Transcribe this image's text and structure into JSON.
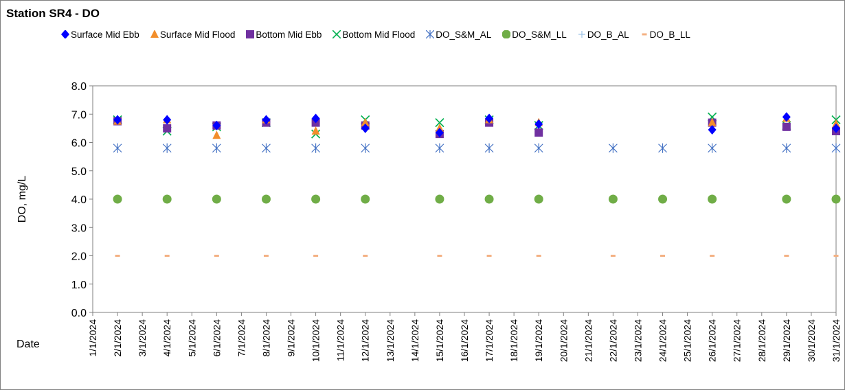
{
  "chart_data": {
    "type": "scatter",
    "title": "Station SR4 - DO",
    "xlabel": "Date",
    "ylabel": "DO, mg/L",
    "ylim": [
      0,
      8
    ],
    "yticks": [
      "0.0",
      "1.0",
      "2.0",
      "3.0",
      "4.0",
      "5.0",
      "6.0",
      "7.0",
      "8.0"
    ],
    "x_ticks": [
      "1/1/2024",
      "2/1/2024",
      "3/1/2024",
      "4/1/2024",
      "5/1/2024",
      "6/1/2024",
      "7/1/2024",
      "8/1/2024",
      "9/1/2024",
      "10/1/2024",
      "11/1/2024",
      "12/1/2024",
      "13/1/2024",
      "14/1/2024",
      "15/1/2024",
      "16/1/2024",
      "17/1/2024",
      "18/1/2024",
      "19/1/2024",
      "20/1/2024",
      "21/1/2024",
      "22/1/2024",
      "23/1/2024",
      "24/1/2024",
      "25/1/2024",
      "26/1/2024",
      "27/1/2024",
      "28/1/2024",
      "29/1/2024",
      "30/1/2024",
      "31/1/2024"
    ],
    "grid": false,
    "legend_position": "top",
    "series": [
      {
        "name": "Surface Mid Ebb",
        "marker": "diamond",
        "color": "#0000ff",
        "x": [
          "2/1/2024",
          "4/1/2024",
          "6/1/2024",
          "8/1/2024",
          "10/1/2024",
          "12/1/2024",
          "15/1/2024",
          "17/1/2024",
          "19/1/2024",
          "26/1/2024",
          "29/1/2024",
          "31/1/2024"
        ],
        "values": [
          6.8,
          6.8,
          6.6,
          6.8,
          6.85,
          6.5,
          6.35,
          6.85,
          6.65,
          6.45,
          6.9,
          6.5
        ]
      },
      {
        "name": "Surface Mid Flood",
        "marker": "triangle",
        "color": "#f28e2b",
        "x": [
          "2/1/2024",
          "4/1/2024",
          "6/1/2024",
          "8/1/2024",
          "10/1/2024",
          "12/1/2024",
          "15/1/2024",
          "17/1/2024",
          "19/1/2024",
          "26/1/2024",
          "29/1/2024",
          "31/1/2024"
        ],
        "values": [
          6.75,
          6.8,
          6.25,
          6.8,
          6.4,
          6.7,
          6.5,
          6.8,
          6.7,
          6.7,
          6.85,
          6.65
        ]
      },
      {
        "name": "Bottom Mid Ebb",
        "marker": "square",
        "color": "#7030a0",
        "x": [
          "2/1/2024",
          "4/1/2024",
          "6/1/2024",
          "8/1/2024",
          "10/1/2024",
          "12/1/2024",
          "15/1/2024",
          "17/1/2024",
          "19/1/2024",
          "26/1/2024",
          "29/1/2024",
          "31/1/2024"
        ],
        "values": [
          6.75,
          6.5,
          6.6,
          6.7,
          6.7,
          6.6,
          6.3,
          6.7,
          6.35,
          6.7,
          6.55,
          6.4
        ]
      },
      {
        "name": "Bottom Mid Flood",
        "marker": "x",
        "color": "#00b050",
        "x": [
          "2/1/2024",
          "4/1/2024",
          "6/1/2024",
          "8/1/2024",
          "10/1/2024",
          "12/1/2024",
          "15/1/2024",
          "17/1/2024",
          "19/1/2024",
          "26/1/2024",
          "29/1/2024",
          "31/1/2024"
        ],
        "values": [
          6.8,
          6.4,
          6.55,
          6.7,
          6.3,
          6.8,
          6.7,
          6.8,
          6.6,
          6.9,
          6.6,
          6.8
        ]
      },
      {
        "name": "DO_S&M_AL",
        "marker": "star",
        "color": "#4472c4",
        "x": [
          "2/1/2024",
          "4/1/2024",
          "6/1/2024",
          "8/1/2024",
          "10/1/2024",
          "12/1/2024",
          "15/1/2024",
          "17/1/2024",
          "19/1/2024",
          "22/1/2024",
          "24/1/2024",
          "26/1/2024",
          "29/1/2024",
          "31/1/2024"
        ],
        "values": [
          5.8,
          5.8,
          5.8,
          5.8,
          5.8,
          5.8,
          5.8,
          5.8,
          5.8,
          5.8,
          5.8,
          5.8,
          5.8,
          5.8
        ]
      },
      {
        "name": "DO_S&M_LL",
        "marker": "circle",
        "color": "#70ad47",
        "x": [
          "2/1/2024",
          "4/1/2024",
          "6/1/2024",
          "8/1/2024",
          "10/1/2024",
          "12/1/2024",
          "15/1/2024",
          "17/1/2024",
          "19/1/2024",
          "22/1/2024",
          "24/1/2024",
          "26/1/2024",
          "29/1/2024",
          "31/1/2024"
        ],
        "values": [
          4,
          4,
          4,
          4,
          4,
          4,
          4,
          4,
          4,
          4,
          4,
          4,
          4,
          4
        ]
      },
      {
        "name": "DO_B_AL",
        "marker": "plus",
        "color": "#9dc3e6",
        "x": [],
        "values": []
      },
      {
        "name": "DO_B_LL",
        "marker": "dash",
        "color": "#f4b183",
        "x": [
          "2/1/2024",
          "4/1/2024",
          "6/1/2024",
          "8/1/2024",
          "10/1/2024",
          "12/1/2024",
          "15/1/2024",
          "17/1/2024",
          "19/1/2024",
          "22/1/2024",
          "24/1/2024",
          "26/1/2024",
          "29/1/2024",
          "31/1/2024"
        ],
        "values": [
          2,
          2,
          2,
          2,
          2,
          2,
          2,
          2,
          2,
          2,
          2,
          2,
          2,
          2
        ]
      }
    ]
  }
}
